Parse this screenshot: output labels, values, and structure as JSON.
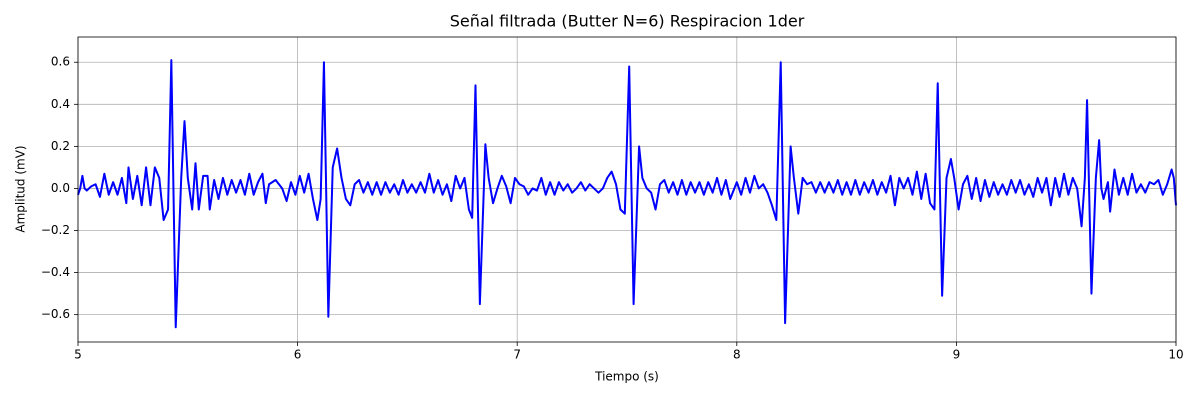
{
  "chart_data": {
    "type": "line",
    "title": "Señal filtrada (Butter N=6) Respiracion 1der",
    "x_label": "Tiempo (s)",
    "y_label": "Amplitud (mV)",
    "color": "#0000ff",
    "grid": true,
    "xlim": [
      5,
      10
    ],
    "ylim": [
      -0.73,
      0.72
    ],
    "xticks": [
      5,
      6,
      7,
      8,
      9,
      10
    ],
    "yticks": [
      {
        "value": -0.6,
        "label": "−0.6"
      },
      {
        "value": -0.4,
        "label": "−0.4"
      },
      {
        "value": -0.2,
        "label": "−0.2"
      },
      {
        "value": 0,
        "label": "0.0"
      },
      0.2,
      0.4,
      0.6
    ],
    "x": [
      5.0,
      5.01,
      5.02,
      5.03,
      5.04,
      5.06,
      5.08,
      5.1,
      5.12,
      5.14,
      5.16,
      5.18,
      5.2,
      5.22,
      5.23,
      5.25,
      5.27,
      5.29,
      5.31,
      5.33,
      5.35,
      5.37,
      5.39,
      5.41,
      5.425,
      5.445,
      5.47,
      5.485,
      5.5,
      5.52,
      5.535,
      5.55,
      5.57,
      5.59,
      5.6,
      5.62,
      5.64,
      5.66,
      5.68,
      5.7,
      5.72,
      5.74,
      5.76,
      5.78,
      5.8,
      5.82,
      5.84,
      5.855,
      5.87,
      5.9,
      5.93,
      5.95,
      5.97,
      5.99,
      6.01,
      6.03,
      6.05,
      6.07,
      6.09,
      6.105,
      6.12,
      6.14,
      6.16,
      6.18,
      6.2,
      6.22,
      6.24,
      6.26,
      6.28,
      6.3,
      6.32,
      6.34,
      6.36,
      6.38,
      6.4,
      6.42,
      6.44,
      6.46,
      6.48,
      6.5,
      6.52,
      6.54,
      6.56,
      6.58,
      6.6,
      6.62,
      6.64,
      6.66,
      6.68,
      6.7,
      6.72,
      6.74,
      6.76,
      6.78,
      6.795,
      6.81,
      6.83,
      6.855,
      6.87,
      6.89,
      6.91,
      6.93,
      6.95,
      6.97,
      6.99,
      7.01,
      7.03,
      7.05,
      7.07,
      7.09,
      7.11,
      7.13,
      7.15,
      7.17,
      7.19,
      7.21,
      7.23,
      7.25,
      7.27,
      7.29,
      7.31,
      7.33,
      7.35,
      7.37,
      7.39,
      7.41,
      7.43,
      7.45,
      7.47,
      7.49,
      7.51,
      7.53,
      7.555,
      7.57,
      7.59,
      7.61,
      7.63,
      7.65,
      7.67,
      7.69,
      7.71,
      7.73,
      7.75,
      7.77,
      7.79,
      7.81,
      7.83,
      7.85,
      7.87,
      7.89,
      7.91,
      7.93,
      7.95,
      7.97,
      8.0,
      8.02,
      8.04,
      8.06,
      8.08,
      8.1,
      8.12,
      8.14,
      8.16,
      8.18,
      8.2,
      8.22,
      8.245,
      8.26,
      8.28,
      8.3,
      8.32,
      8.34,
      8.36,
      8.38,
      8.4,
      8.42,
      8.44,
      8.46,
      8.48,
      8.5,
      8.52,
      8.54,
      8.56,
      8.58,
      8.6,
      8.62,
      8.64,
      8.66,
      8.68,
      8.7,
      8.72,
      8.74,
      8.76,
      8.78,
      8.8,
      8.82,
      8.84,
      8.86,
      8.88,
      8.9,
      8.915,
      8.935,
      8.955,
      8.975,
      8.99,
      9.01,
      9.03,
      9.05,
      9.07,
      9.09,
      9.11,
      9.13,
      9.15,
      9.17,
      9.19,
      9.21,
      9.23,
      9.25,
      9.27,
      9.29,
      9.31,
      9.33,
      9.35,
      9.37,
      9.39,
      9.41,
      9.43,
      9.45,
      9.47,
      9.49,
      9.51,
      9.53,
      9.55,
      9.57,
      9.585,
      9.595,
      9.615,
      9.635,
      9.65,
      9.66,
      9.67,
      9.69,
      9.7,
      9.72,
      9.74,
      9.76,
      9.78,
      9.8,
      9.82,
      9.84,
      9.86,
      9.88,
      9.9,
      9.92,
      9.94,
      9.96,
      9.98,
      9.99,
      10.0
    ],
    "values": [
      -0.03,
      0.0,
      0.06,
      0.0,
      -0.01,
      0.01,
      0.02,
      -0.04,
      0.07,
      -0.03,
      0.03,
      -0.03,
      0.05,
      -0.07,
      0.1,
      -0.05,
      0.06,
      -0.08,
      0.1,
      -0.08,
      0.1,
      0.05,
      -0.15,
      -0.1,
      0.61,
      -0.66,
      0.05,
      0.32,
      0.05,
      -0.1,
      0.12,
      -0.1,
      0.06,
      0.06,
      -0.1,
      0.04,
      -0.05,
      0.05,
      -0.03,
      0.04,
      -0.02,
      0.04,
      -0.03,
      0.07,
      -0.03,
      0.03,
      0.07,
      -0.07,
      0.02,
      0.04,
      0.0,
      -0.06,
      0.03,
      -0.03,
      0.06,
      -0.02,
      0.07,
      -0.05,
      -0.15,
      -0.05,
      0.6,
      -0.61,
      0.1,
      0.19,
      0.05,
      -0.05,
      -0.08,
      0.02,
      0.04,
      -0.02,
      0.03,
      -0.03,
      0.03,
      -0.03,
      0.03,
      -0.02,
      0.02,
      -0.03,
      0.04,
      -0.02,
      0.02,
      -0.02,
      0.03,
      -0.02,
      0.07,
      -0.02,
      0.04,
      -0.03,
      0.02,
      -0.06,
      0.06,
      0.0,
      0.05,
      -0.1,
      -0.14,
      0.49,
      -0.55,
      0.21,
      0.05,
      -0.07,
      0.0,
      0.06,
      0.01,
      -0.07,
      0.05,
      0.02,
      0.01,
      -0.03,
      0.0,
      -0.01,
      0.05,
      -0.03,
      0.03,
      -0.03,
      0.03,
      -0.01,
      0.02,
      -0.02,
      0.0,
      0.03,
      -0.01,
      0.02,
      0.0,
      -0.02,
      0.0,
      0.05,
      0.08,
      0.02,
      -0.1,
      -0.12,
      0.58,
      -0.55,
      0.2,
      0.05,
      0.0,
      -0.02,
      -0.1,
      0.02,
      0.04,
      -0.02,
      0.03,
      -0.03,
      0.04,
      -0.03,
      0.03,
      -0.02,
      0.03,
      -0.03,
      0.03,
      -0.02,
      0.05,
      -0.03,
      0.04,
      -0.05,
      0.03,
      -0.03,
      0.05,
      -0.02,
      0.06,
      0.0,
      0.02,
      -0.02,
      -0.08,
      -0.15,
      0.6,
      -0.64,
      0.2,
      0.05,
      -0.12,
      0.05,
      0.02,
      0.03,
      -0.02,
      0.03,
      -0.02,
      0.03,
      -0.02,
      0.04,
      -0.03,
      0.03,
      -0.03,
      0.04,
      -0.03,
      0.03,
      -0.02,
      0.04,
      -0.03,
      0.03,
      -0.02,
      0.06,
      -0.08,
      0.05,
      0.0,
      0.05,
      -0.03,
      0.08,
      -0.05,
      0.07,
      -0.07,
      -0.1,
      0.5,
      -0.51,
      0.05,
      0.14,
      0.05,
      -0.1,
      0.02,
      0.06,
      -0.05,
      0.05,
      -0.06,
      0.04,
      -0.04,
      0.03,
      -0.03,
      0.02,
      -0.03,
      0.04,
      -0.02,
      0.04,
      -0.03,
      0.02,
      -0.04,
      0.05,
      -0.02,
      0.05,
      -0.08,
      0.05,
      -0.04,
      0.07,
      -0.03,
      0.05,
      0.0,
      -0.18,
      0.05,
      0.42,
      -0.5,
      0.05,
      0.23,
      0.0,
      -0.05,
      0.03,
      -0.11,
      0.09,
      -0.03,
      0.05,
      -0.03,
      0.07,
      -0.02,
      0.02,
      -0.02,
      0.03,
      0.02,
      0.04,
      -0.03,
      0.02,
      0.09,
      0.05,
      -0.08
    ]
  }
}
